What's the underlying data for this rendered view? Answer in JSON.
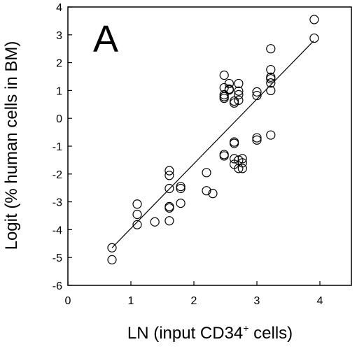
{
  "chart_data": {
    "type": "scatter",
    "panel_label": "A",
    "xlabel": "LN (input CD34",
    "xlabel_sup": "+",
    "xlabel_tail": " cells)",
    "ylabel": "Logit (% human cells in BM)",
    "xlim": [
      0,
      4.5
    ],
    "ylim": [
      -6,
      4
    ],
    "xticks": [
      "0",
      "1",
      "2",
      "3",
      "4"
    ],
    "yticks": [
      "-6",
      "-5",
      "-4",
      "-3",
      "-2",
      "-1",
      "0",
      "1",
      "2",
      "3",
      "4"
    ],
    "grid": false,
    "marker": "open-circle",
    "fit_line": {
      "x": [
        0.7,
        3.9
      ],
      "y": [
        -4.65,
        2.78
      ]
    },
    "points": [
      [
        0.7,
        -4.65
      ],
      [
        0.7,
        -5.08
      ],
      [
        1.1,
        -3.08
      ],
      [
        1.1,
        -3.45
      ],
      [
        1.1,
        -3.82
      ],
      [
        1.38,
        -3.72
      ],
      [
        1.61,
        -1.88
      ],
      [
        1.61,
        -2.05
      ],
      [
        1.61,
        -2.52
      ],
      [
        1.61,
        -3.17
      ],
      [
        1.61,
        -3.22
      ],
      [
        1.61,
        -3.68
      ],
      [
        1.79,
        -2.45
      ],
      [
        1.79,
        -2.52
      ],
      [
        1.79,
        -3.05
      ],
      [
        2.2,
        -1.95
      ],
      [
        2.2,
        -2.6
      ],
      [
        2.3,
        -2.7
      ],
      [
        2.48,
        1.55
      ],
      [
        2.48,
        1.1
      ],
      [
        2.48,
        0.85
      ],
      [
        2.48,
        0.78
      ],
      [
        2.48,
        0.72
      ],
      [
        2.48,
        -1.3
      ],
      [
        2.48,
        -1.35
      ],
      [
        2.56,
        1.25
      ],
      [
        2.56,
        1.05
      ],
      [
        2.56,
        1.02
      ],
      [
        2.64,
        0.62
      ],
      [
        2.64,
        0.55
      ],
      [
        2.64,
        -0.85
      ],
      [
        2.64,
        -0.9
      ],
      [
        2.64,
        -1.45
      ],
      [
        2.64,
        -1.65
      ],
      [
        2.71,
        1.25
      ],
      [
        2.71,
        0.98
      ],
      [
        2.71,
        0.85
      ],
      [
        2.71,
        0.65
      ],
      [
        2.71,
        -1.5
      ],
      [
        2.71,
        -1.8
      ],
      [
        2.77,
        -1.45
      ],
      [
        2.77,
        -1.6
      ],
      [
        2.77,
        -1.8
      ],
      [
        3.0,
        0.95
      ],
      [
        3.0,
        0.82
      ],
      [
        3.0,
        -0.7
      ],
      [
        3.0,
        -0.78
      ],
      [
        3.22,
        2.5
      ],
      [
        3.22,
        1.75
      ],
      [
        3.22,
        1.48
      ],
      [
        3.22,
        1.42
      ],
      [
        3.22,
        1.27
      ],
      [
        3.22,
        1.0
      ],
      [
        3.22,
        -0.6
      ],
      [
        3.91,
        3.55
      ],
      [
        3.91,
        2.88
      ]
    ]
  }
}
